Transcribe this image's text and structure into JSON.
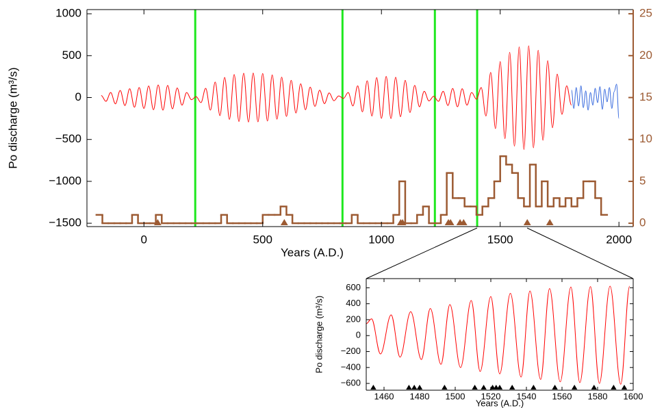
{
  "chart_data": [
    {
      "type": "line",
      "ylabel": "Po discharge (m³/s)",
      "xlabel": "Years (A.D.)",
      "xlim": [
        -240,
        2060
      ],
      "xticks": [
        0,
        500,
        1000,
        1500,
        2000
      ],
      "ylim": [
        -1540,
        1050
      ],
      "yticks": [
        {
          "value": -1500,
          "label": "−1500"
        },
        {
          "value": -1000,
          "label": "−1000"
        },
        {
          "value": -500,
          "label": "−500"
        },
        0,
        500,
        1000
      ],
      "y2lim": [
        -0.4,
        25.5
      ],
      "y2ticks": [
        0,
        5,
        10,
        15,
        20,
        25
      ],
      "y2color": "#9c5a32",
      "vlines": {
        "color": "#1ee81e",
        "x": [
          216,
          836,
          1225,
          1403
        ]
      },
      "series": [
        {
          "color": "#ff0000",
          "x": [
            -180,
            -160,
            -140,
            -120,
            -100,
            -80,
            -60,
            -40,
            -20,
            0,
            20,
            40,
            60,
            80,
            100,
            120,
            140,
            160,
            180,
            200,
            220,
            240,
            260,
            280,
            300,
            320,
            340,
            360,
            380,
            400,
            420,
            440,
            460,
            480,
            500,
            520,
            540,
            560,
            580,
            600,
            620,
            640,
            660,
            680,
            700,
            720,
            740,
            760,
            780,
            800,
            820,
            840,
            860,
            880,
            900,
            920,
            940,
            960,
            980,
            1000,
            1020,
            1040,
            1060,
            1080,
            1100,
            1120,
            1140,
            1160,
            1180,
            1200,
            1220,
            1240,
            1260,
            1280,
            1300,
            1320,
            1340,
            1360,
            1380,
            1400,
            1420,
            1440,
            1460,
            1480,
            1500,
            1520,
            1540,
            1560,
            1580,
            1600,
            1620,
            1640,
            1660,
            1680,
            1700,
            1720,
            1740,
            1760,
            1780,
            1800
          ],
          "values": [
            25,
            -45,
            60,
            -75,
            85,
            -95,
            105,
            -115,
            120,
            -130,
            138,
            -145,
            150,
            -150,
            145,
            -135,
            115,
            -90,
            60,
            -25,
            10,
            -60,
            110,
            -150,
            185,
            -215,
            240,
            -260,
            275,
            -285,
            290,
            -292,
            292,
            -290,
            287,
            -280,
            270,
            -258,
            243,
            -225,
            205,
            -185,
            165,
            -145,
            125,
            -105,
            88,
            -72,
            55,
            -38,
            20,
            -10,
            60,
            -100,
            140,
            -170,
            200,
            -220,
            238,
            -248,
            252,
            -250,
            242,
            -228,
            205,
            -178,
            145,
            -110,
            75,
            -40,
            15,
            -45,
            75,
            -95,
            108,
            -110,
            105,
            -90,
            60,
            -20,
            120,
            -220,
            300,
            -370,
            430,
            -490,
            540,
            -580,
            605,
            -620,
            618,
            -600,
            565,
            -510,
            440,
            -360,
            280,
            -200,
            140,
            -90
          ]
        },
        {
          "color": "#3366dd",
          "x": [
            1800,
            1810,
            1820,
            1830,
            1840,
            1850,
            1860,
            1870,
            1880,
            1890,
            1900,
            1910,
            1920,
            1930,
            1940,
            1950,
            1960,
            1970,
            1980,
            1990,
            2000
          ],
          "values": [
            90,
            -130,
            120,
            -100,
            140,
            -120,
            80,
            -150,
            60,
            -90,
            110,
            -60,
            130,
            -140,
            100,
            -50,
            120,
            -130,
            70,
            160,
            -250
          ]
        },
        {
          "type": "step",
          "axis": "y2",
          "color": "#9c5a32",
          "bins": [
            -200,
            -175,
            -150,
            -125,
            -100,
            -75,
            -50,
            -25,
            0,
            25,
            50,
            75,
            100,
            125,
            150,
            175,
            200,
            225,
            250,
            275,
            300,
            325,
            350,
            375,
            400,
            425,
            450,
            475,
            500,
            525,
            550,
            575,
            600,
            625,
            650,
            675,
            700,
            725,
            750,
            775,
            800,
            825,
            850,
            875,
            900,
            925,
            950,
            975,
            1000,
            1025,
            1050,
            1075,
            1100,
            1125,
            1150,
            1175,
            1200,
            1225,
            1250,
            1275,
            1300,
            1325,
            1350,
            1375,
            1400,
            1425,
            1450,
            1475,
            1500,
            1525,
            1550,
            1575,
            1600,
            1625,
            1650,
            1675,
            1700,
            1725,
            1750,
            1775,
            1800,
            1825,
            1850,
            1875,
            1900,
            1925,
            1950
          ],
          "values": [
            1,
            0,
            0,
            0,
            0,
            0,
            1,
            0,
            0,
            0,
            1,
            0,
            0,
            0,
            0,
            0,
            0,
            0,
            0,
            0,
            0,
            1,
            0,
            0,
            0,
            0,
            0,
            0,
            1,
            1,
            1,
            2,
            1,
            0,
            0,
            0,
            0,
            0,
            0,
            0,
            0,
            0,
            0,
            1,
            0,
            0,
            0,
            0,
            0,
            0,
            1,
            5,
            0,
            0,
            1,
            2,
            0,
            0,
            1,
            6,
            3,
            3,
            2,
            2,
            1,
            2,
            3,
            5,
            8,
            7,
            6,
            3,
            2,
            7,
            2,
            5,
            2,
            3,
            2,
            3,
            2,
            3,
            5,
            5,
            3,
            1
          ]
        },
        {
          "type": "marker",
          "axis": "y2",
          "color": "#9c5a32",
          "x": [
            58,
            591,
            1081,
            1089,
            1282,
            1291,
            1331,
            1346,
            1614,
            1709
          ]
        }
      ]
    },
    {
      "type": "line",
      "ylabel": "Po discharge (m³/s)",
      "xlabel": "Years (A.D.)",
      "xlim": [
        1450,
        1600
      ],
      "xticks": [
        1460,
        1480,
        1500,
        1520,
        1540,
        1560,
        1580,
        1600
      ],
      "ylim": [
        -685,
        715
      ],
      "yticks": [
        {
          "value": -600,
          "label": "−600"
        },
        {
          "value": -400,
          "label": "−400"
        },
        {
          "value": -200,
          "label": "−200"
        },
        0,
        200,
        400,
        600
      ],
      "series": [
        {
          "color": "#ff0000",
          "x": [
            1450,
            1453,
            1458,
            1464,
            1469,
            1475,
            1481,
            1486,
            1492,
            1497,
            1503,
            1509,
            1514,
            1520,
            1525,
            1531,
            1537,
            1542,
            1548,
            1553,
            1559,
            1565,
            1570,
            1576,
            1581,
            1587,
            1593,
            1598
          ],
          "values": [
            150,
            210,
            -230,
            260,
            -270,
            300,
            -300,
            340,
            -360,
            390,
            -400,
            440,
            -450,
            490,
            -480,
            530,
            -520,
            560,
            -550,
            590,
            -580,
            610,
            -590,
            615,
            -600,
            620,
            -610,
            620
          ]
        },
        {
          "type": "marker",
          "color": "#000000",
          "x": [
            1454,
            1474,
            1477,
            1480,
            1494,
            1511,
            1516,
            1521,
            1523,
            1525,
            1532,
            1544,
            1556,
            1567,
            1578,
            1589,
            1595
          ]
        }
      ]
    }
  ]
}
